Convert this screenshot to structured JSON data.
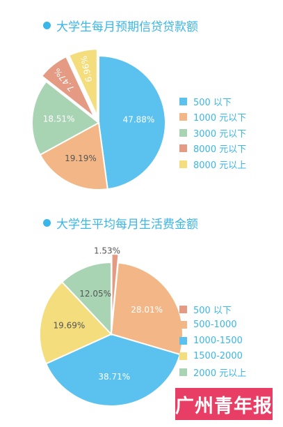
{
  "colors": {
    "title": "#3ab6e8",
    "legend_text": "#3ab6e8",
    "logo_bg": "#e83d64"
  },
  "logo": {
    "text": "广州青年报"
  },
  "chart_data": [
    {
      "type": "pie",
      "title": "大学生每月预期信贷贷款额",
      "categories": [
        "500 以下",
        "1000 元以下",
        "3000 元以下",
        "8000 元以下",
        "8000 元以上"
      ],
      "values": [
        47.88,
        19.19,
        18.51,
        7.47,
        6.96
      ],
      "labels": [
        "47.88%",
        "19.19%",
        "18.51%",
        "7.47%",
        "6.96%"
      ],
      "colors": [
        "#5bc2ef",
        "#f3b787",
        "#a8d4b4",
        "#e59a83",
        "#f3dd7d"
      ],
      "legend": "right"
    },
    {
      "type": "pie",
      "title": "大学生平均每月生活费金额",
      "categories": [
        "500 以下",
        "500-1000",
        "1000-1500",
        "1500-2000",
        "2000 元以上"
      ],
      "values": [
        1.53,
        28.01,
        38.71,
        19.69,
        12.05
      ],
      "labels": [
        "1.53%",
        "28.01%",
        "38.71%",
        "19.69%",
        "12.05%"
      ],
      "colors": [
        "#e59a83",
        "#f3b787",
        "#5bc2ef",
        "#f3dd7d",
        "#a8d4b4"
      ],
      "legend": "right"
    }
  ]
}
